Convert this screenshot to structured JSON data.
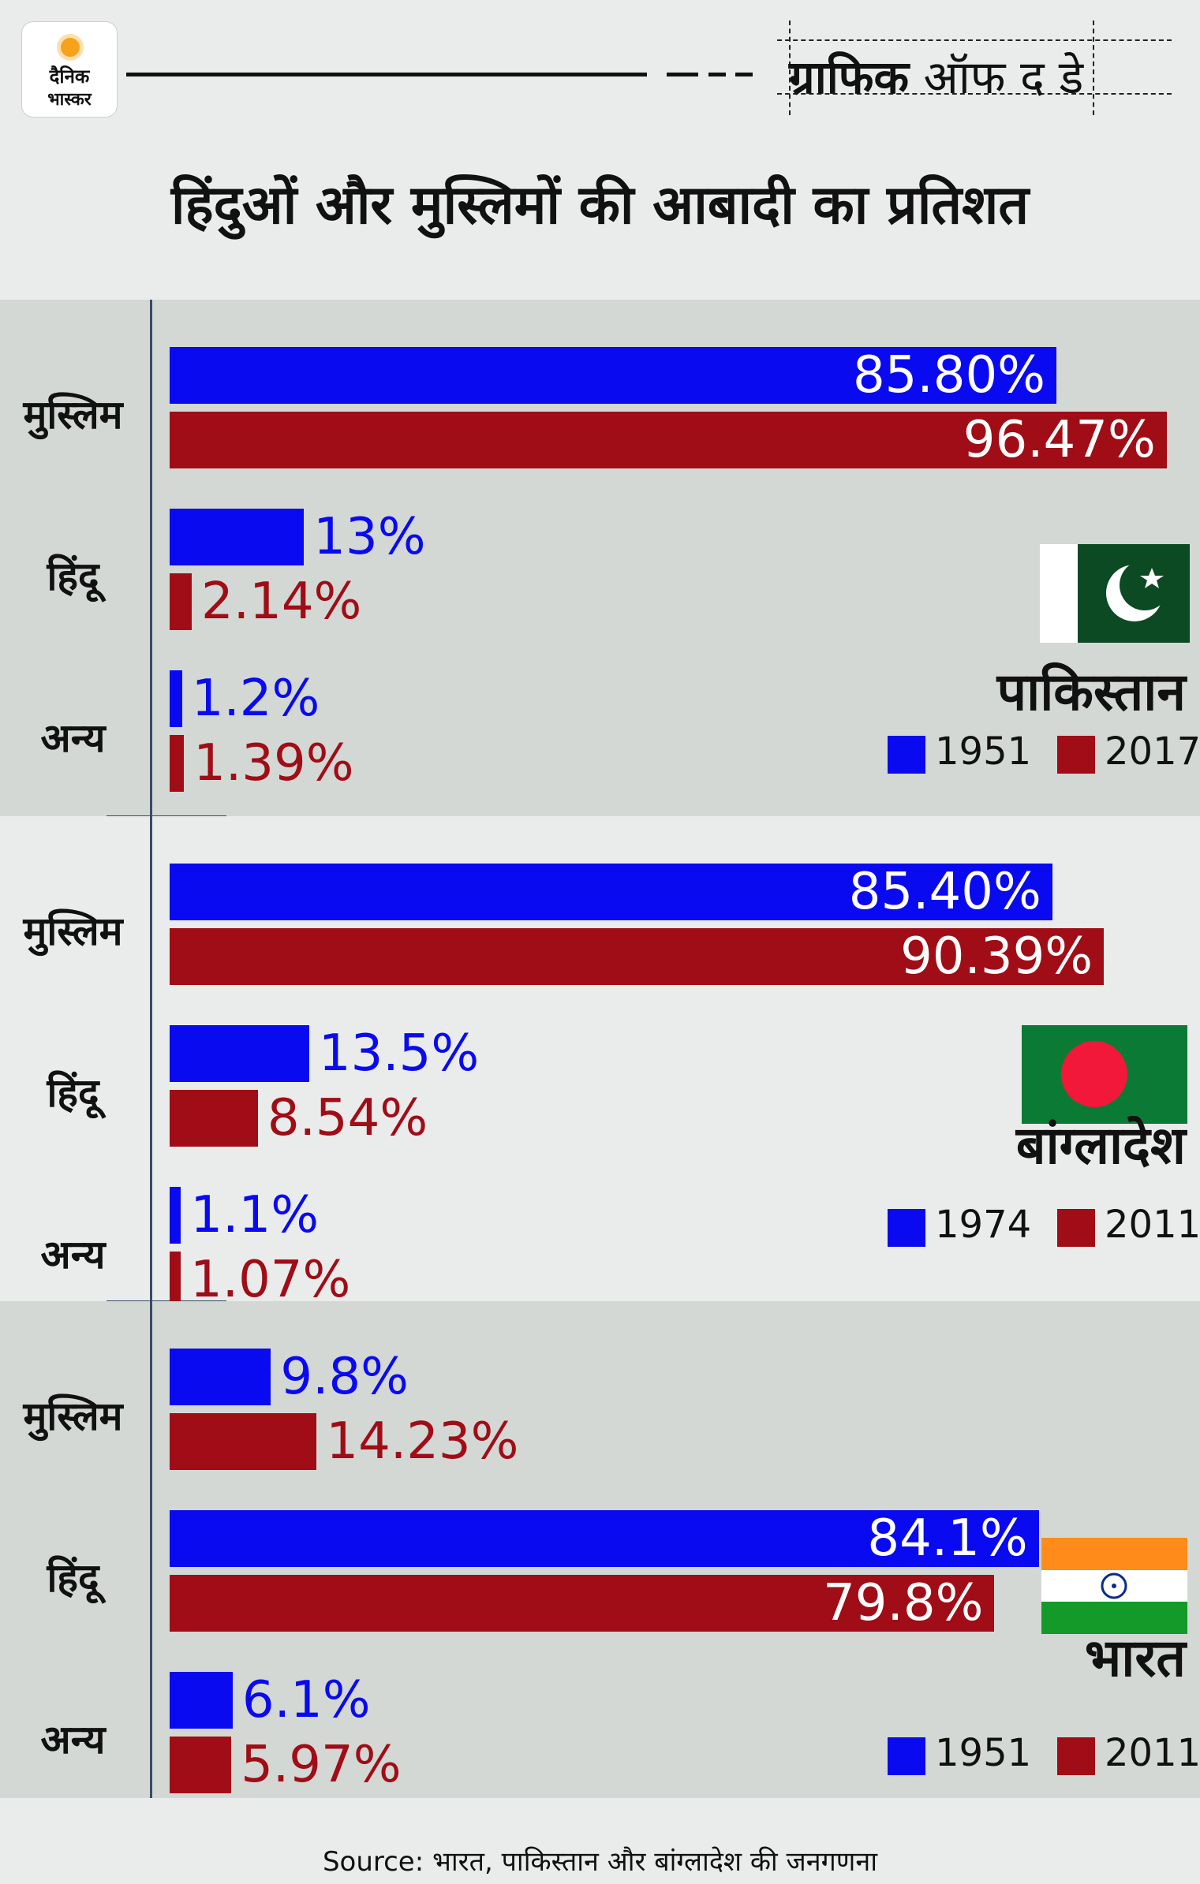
{
  "header": {
    "logo_line1": "दैनिक",
    "logo_line2": "भास्कर",
    "tag_bold": "ग्राफिक",
    "tag_rest": " ऑफ द डे",
    "title": "हिंदुओं और मुस्लिमों की आबादी का प्रतिशत"
  },
  "colors": {
    "series1": "#0a0af0",
    "series2": "#a00d16",
    "panel_dark": "#d3d8d5",
    "panel_light": "#e9eceb"
  },
  "chart_data": [
    {
      "type": "bar",
      "country": "पाकिस्तान",
      "flag": "pakistan-flag",
      "categories": [
        "मुस्लिम",
        "हिंदू",
        "अन्य"
      ],
      "series": [
        {
          "name": "1951",
          "values": [
            85.8,
            13,
            1.2
          ],
          "labels": [
            "85.80%",
            "13%",
            "1.2%"
          ]
        },
        {
          "name": "2017",
          "values": [
            96.47,
            2.14,
            1.39
          ],
          "labels": [
            "96.47%",
            "2.14%",
            "1.39%"
          ]
        }
      ]
    },
    {
      "type": "bar",
      "country": "बांग्लादेश",
      "flag": "bangladesh-flag",
      "categories": [
        "मुस्लिम",
        "हिंदू",
        "अन्य"
      ],
      "series": [
        {
          "name": "1974",
          "values": [
            85.4,
            13.5,
            1.1
          ],
          "labels": [
            "85.40%",
            "13.5%",
            "1.1%"
          ]
        },
        {
          "name": "2011",
          "values": [
            90.39,
            8.54,
            1.07
          ],
          "labels": [
            "90.39%",
            "8.54%",
            "1.07%"
          ]
        }
      ]
    },
    {
      "type": "bar",
      "country": "भारत",
      "flag": "india-flag",
      "categories": [
        "मुस्लिम",
        "हिंदू",
        "अन्य"
      ],
      "series": [
        {
          "name": "1951",
          "values": [
            9.8,
            84.1,
            6.1
          ],
          "labels": [
            "9.8%",
            "84.1%",
            "6.1%"
          ]
        },
        {
          "name": "2011",
          "values": [
            14.23,
            79.8,
            5.97
          ],
          "labels": [
            "14.23%",
            "79.8%",
            "5.97%"
          ]
        }
      ]
    }
  ],
  "source": "Source: भारत, पाकिस्तान और बांग्लादेश की जनगणना"
}
